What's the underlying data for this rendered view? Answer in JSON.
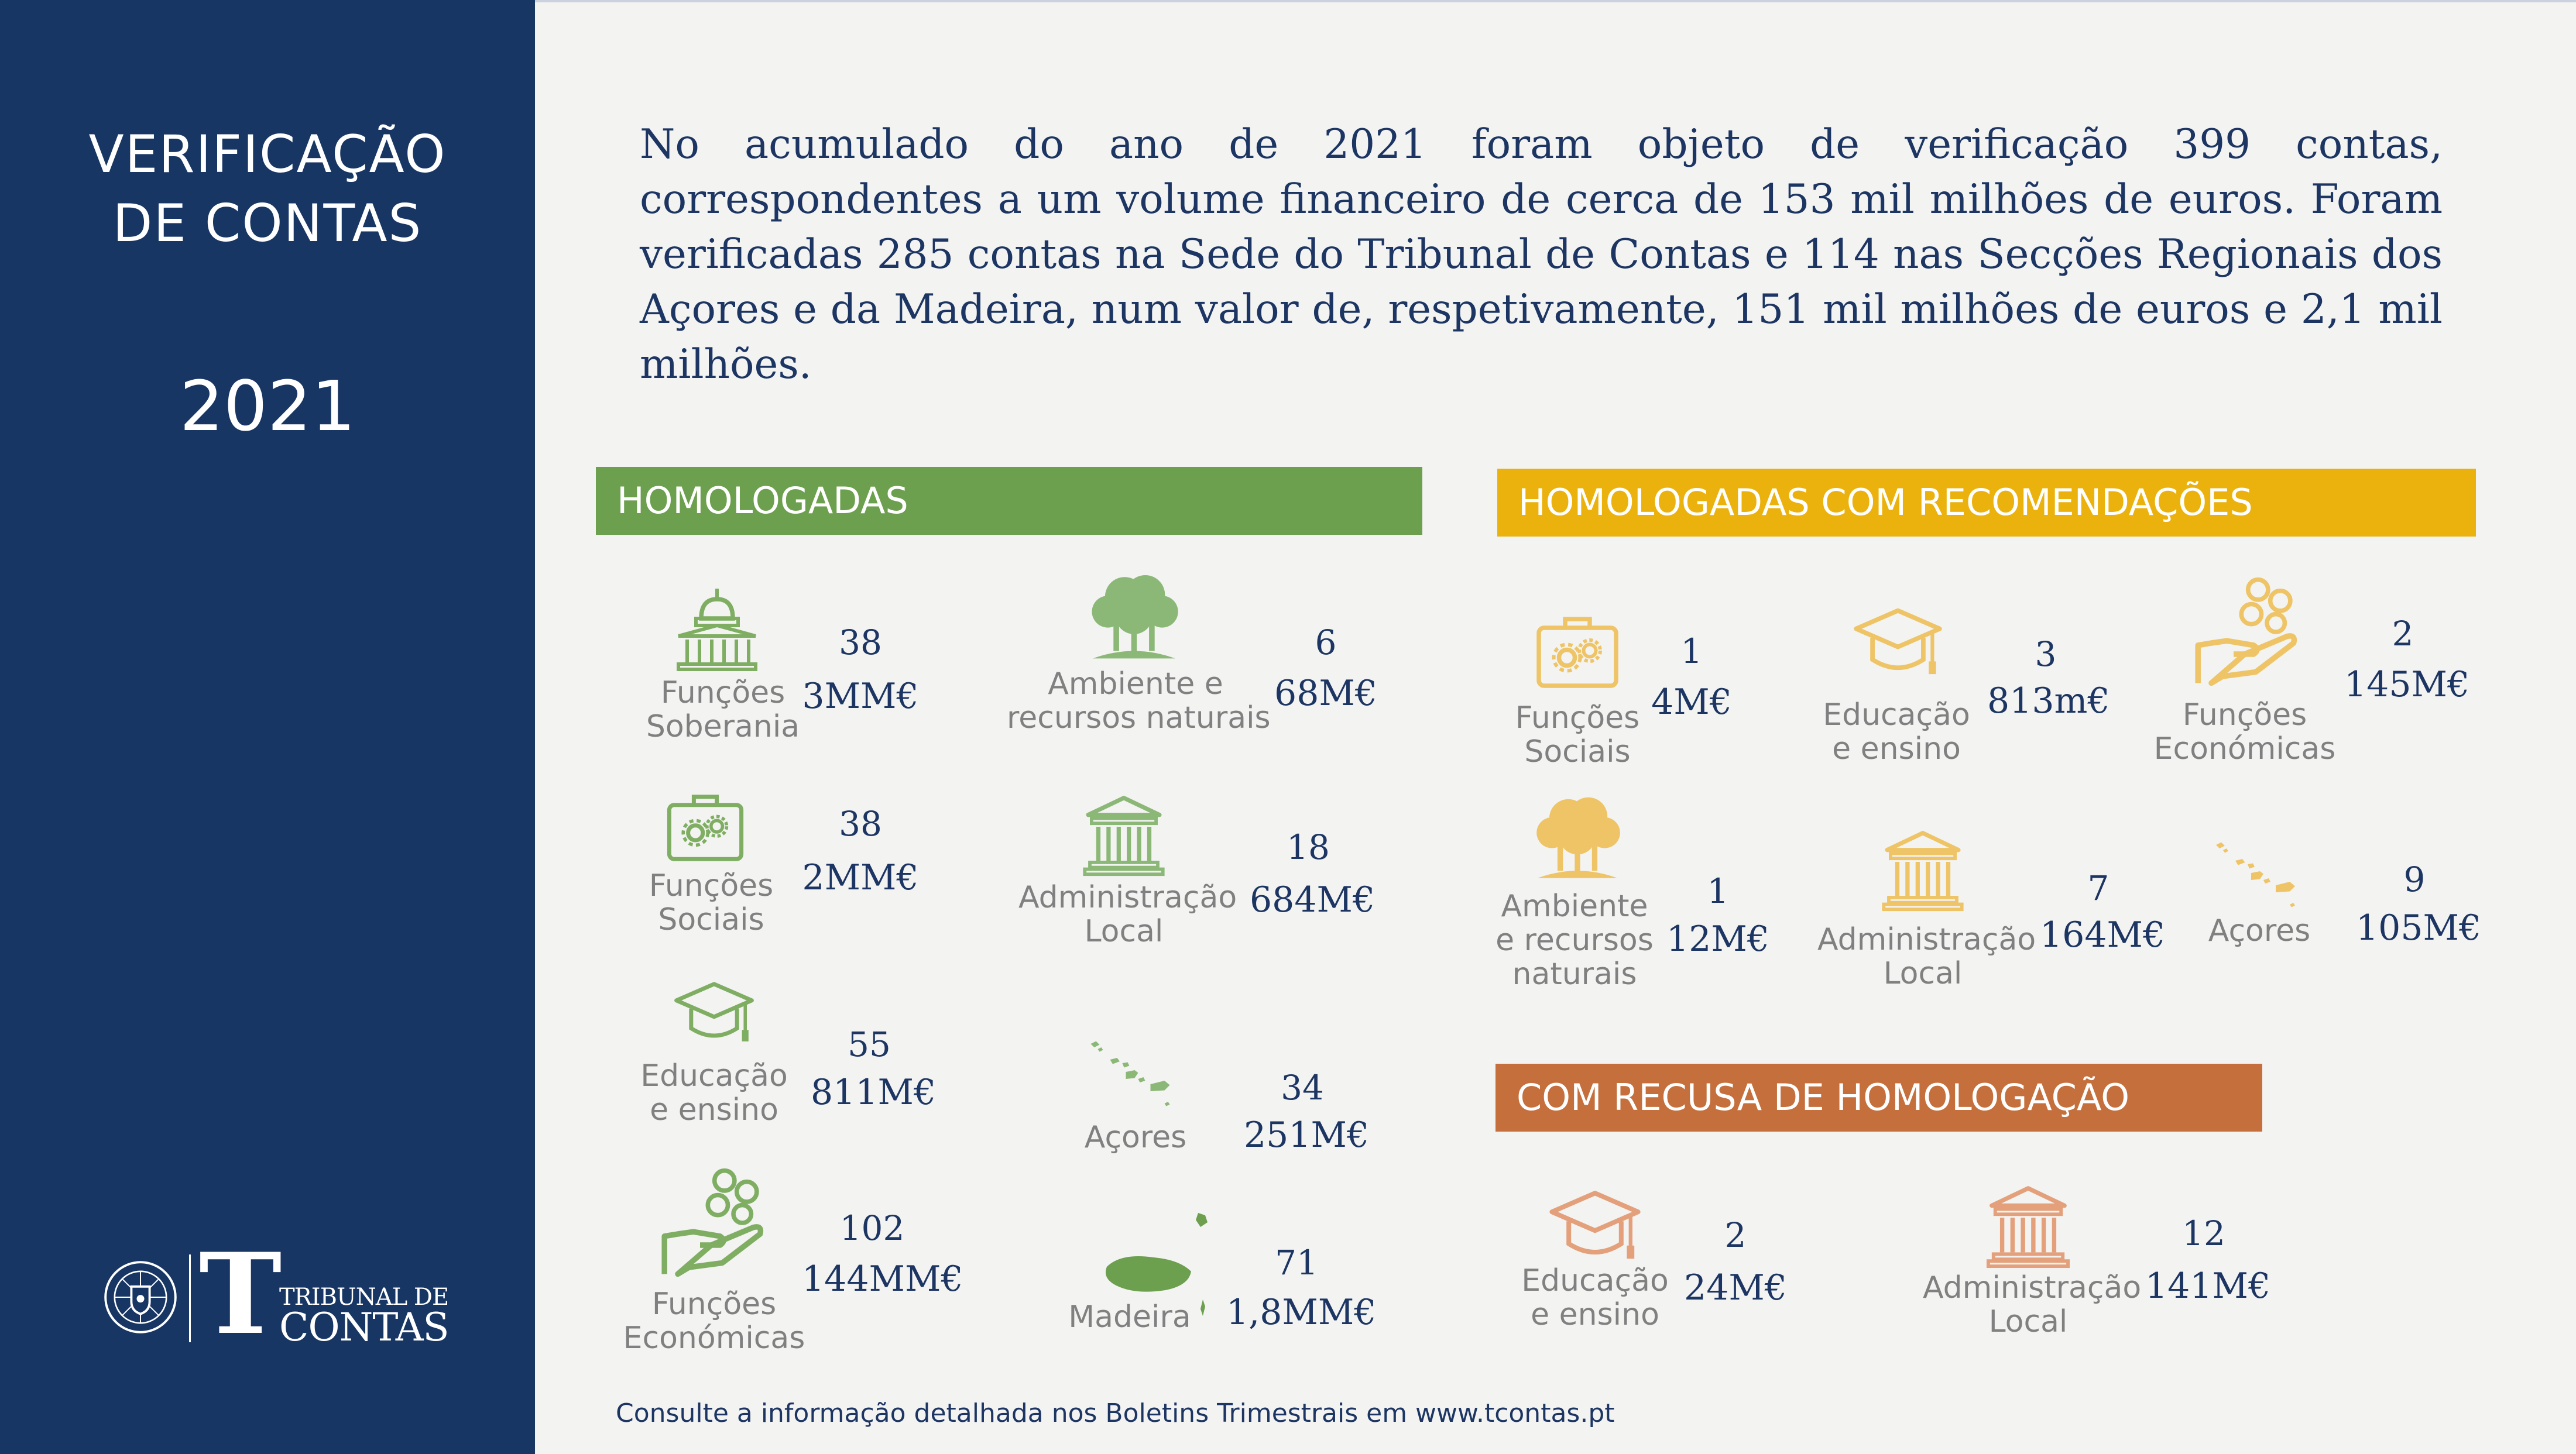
{
  "sidebar": {
    "title_line1": "VERIFICAÇÃO",
    "title_line2": "DE CONTAS",
    "year": "2021",
    "logo_line1": "TRIBUNAL DE",
    "logo_line2": "CONTAS"
  },
  "intro": "No acumulado do ano de 2021 foram objeto de verificação 399 contas, correspondentes a um volume financeiro de cerca de 153 mil milhões de euros. Foram verificadas 285 contas na Sede do Tribunal de Contas e 114 nas Secções Regionais dos Açores e da Madeira, num valor de, respetivamente, 151 mil milhões de euros e 2,1 mil milhões.",
  "colors": {
    "sidebar": "#183663",
    "green": "#6c9f4e",
    "yellow": "#ebb20e",
    "orange": "#c46f3c",
    "text": "#1c3562"
  },
  "homologadas": {
    "title": "HOMOLOGADAS",
    "items": [
      {
        "icon": "parliament-icon",
        "label1": "Funções",
        "label2": "Soberania",
        "count": "38",
        "value": "3MM€"
      },
      {
        "icon": "briefcase-gears-icon",
        "label1": "Funções",
        "label2": "Sociais",
        "count": "38",
        "value": "2MM€"
      },
      {
        "icon": "graduation-cap-icon",
        "label1": "Educação",
        "label2": "e ensino",
        "count": "55",
        "value": "811M€"
      },
      {
        "icon": "hand-coins-icon",
        "label1": "Funções",
        "label2": "Económicas",
        "count": "102",
        "value": "144MM€"
      },
      {
        "icon": "trees-icon",
        "label1": "Ambiente e",
        "label2": "recursos naturais",
        "count": "6",
        "value": "68M€"
      },
      {
        "icon": "columns-building-icon",
        "label1": "Administração",
        "label2": "Local",
        "count": "18",
        "value": "684M€"
      },
      {
        "icon": "azores-map-icon",
        "label1": "Açores",
        "label2": "",
        "count": "34",
        "value": "251M€"
      },
      {
        "icon": "madeira-map-icon",
        "label1": "Madeira",
        "label2": "",
        "count": "71",
        "value": "1,8MM€"
      }
    ]
  },
  "recomendacoes": {
    "title": "HOMOLOGADAS COM RECOMENDAÇÕES",
    "items": [
      {
        "icon": "briefcase-gears-icon",
        "label1": "Funções",
        "label2": "Sociais",
        "label3": "",
        "count": "1",
        "value": "4M€"
      },
      {
        "icon": "graduation-cap-icon",
        "label1": "Educação",
        "label2": "e ensino",
        "label3": "",
        "count": "3",
        "value": "813m€"
      },
      {
        "icon": "hand-coins-icon",
        "label1": "Funções",
        "label2": "Económicas",
        "label3": "",
        "count": "2",
        "value": "145M€"
      },
      {
        "icon": "trees-icon",
        "label1": "Ambiente",
        "label2": "e recursos",
        "label3": "naturais",
        "count": "1",
        "value": "12M€"
      },
      {
        "icon": "columns-building-icon",
        "label1": "Administração",
        "label2": "Local",
        "label3": "",
        "count": "7",
        "value": "164M€"
      },
      {
        "icon": "azores-map-icon",
        "label1": "Açores",
        "label2": "",
        "label3": "",
        "count": "9",
        "value": "105M€"
      }
    ]
  },
  "recusa": {
    "title": "COM RECUSA DE HOMOLOGAÇÃO",
    "items": [
      {
        "icon": "graduation-cap-icon",
        "label1": "Educação",
        "label2": "e ensino",
        "count": "2",
        "value": "24M€"
      },
      {
        "icon": "columns-building-icon",
        "label1": "Administração",
        "label2": "Local",
        "count": "12",
        "value": "141M€"
      }
    ]
  },
  "footer": "Consulte a informação detalhada nos Boletins Trimestrais em www.tcontas.pt"
}
